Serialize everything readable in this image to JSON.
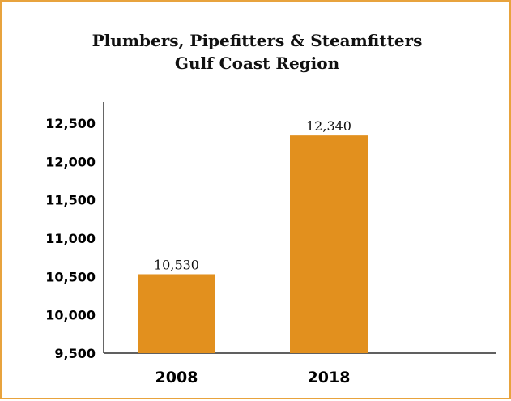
{
  "chart_data": {
    "type": "bar",
    "title": "Plumbers, Pipefitters & Steamfitters",
    "subtitle": "Gulf Coast Region",
    "categories": [
      "2008",
      "2018"
    ],
    "values": [
      10530,
      12340
    ],
    "data_labels": [
      "10,530",
      "12,340"
    ],
    "y_ticks": [
      9500,
      10000,
      10500,
      11000,
      11500,
      12000,
      12500
    ],
    "y_tick_labels": [
      "9,500",
      "10,000",
      "10,500",
      "11,000",
      "11,500",
      "12,000",
      "12,500"
    ],
    "ylim": [
      9500,
      12500
    ],
    "grid": false,
    "legend": "none",
    "bar_color": "#e2901e",
    "frame_color": "#e8a33d"
  }
}
